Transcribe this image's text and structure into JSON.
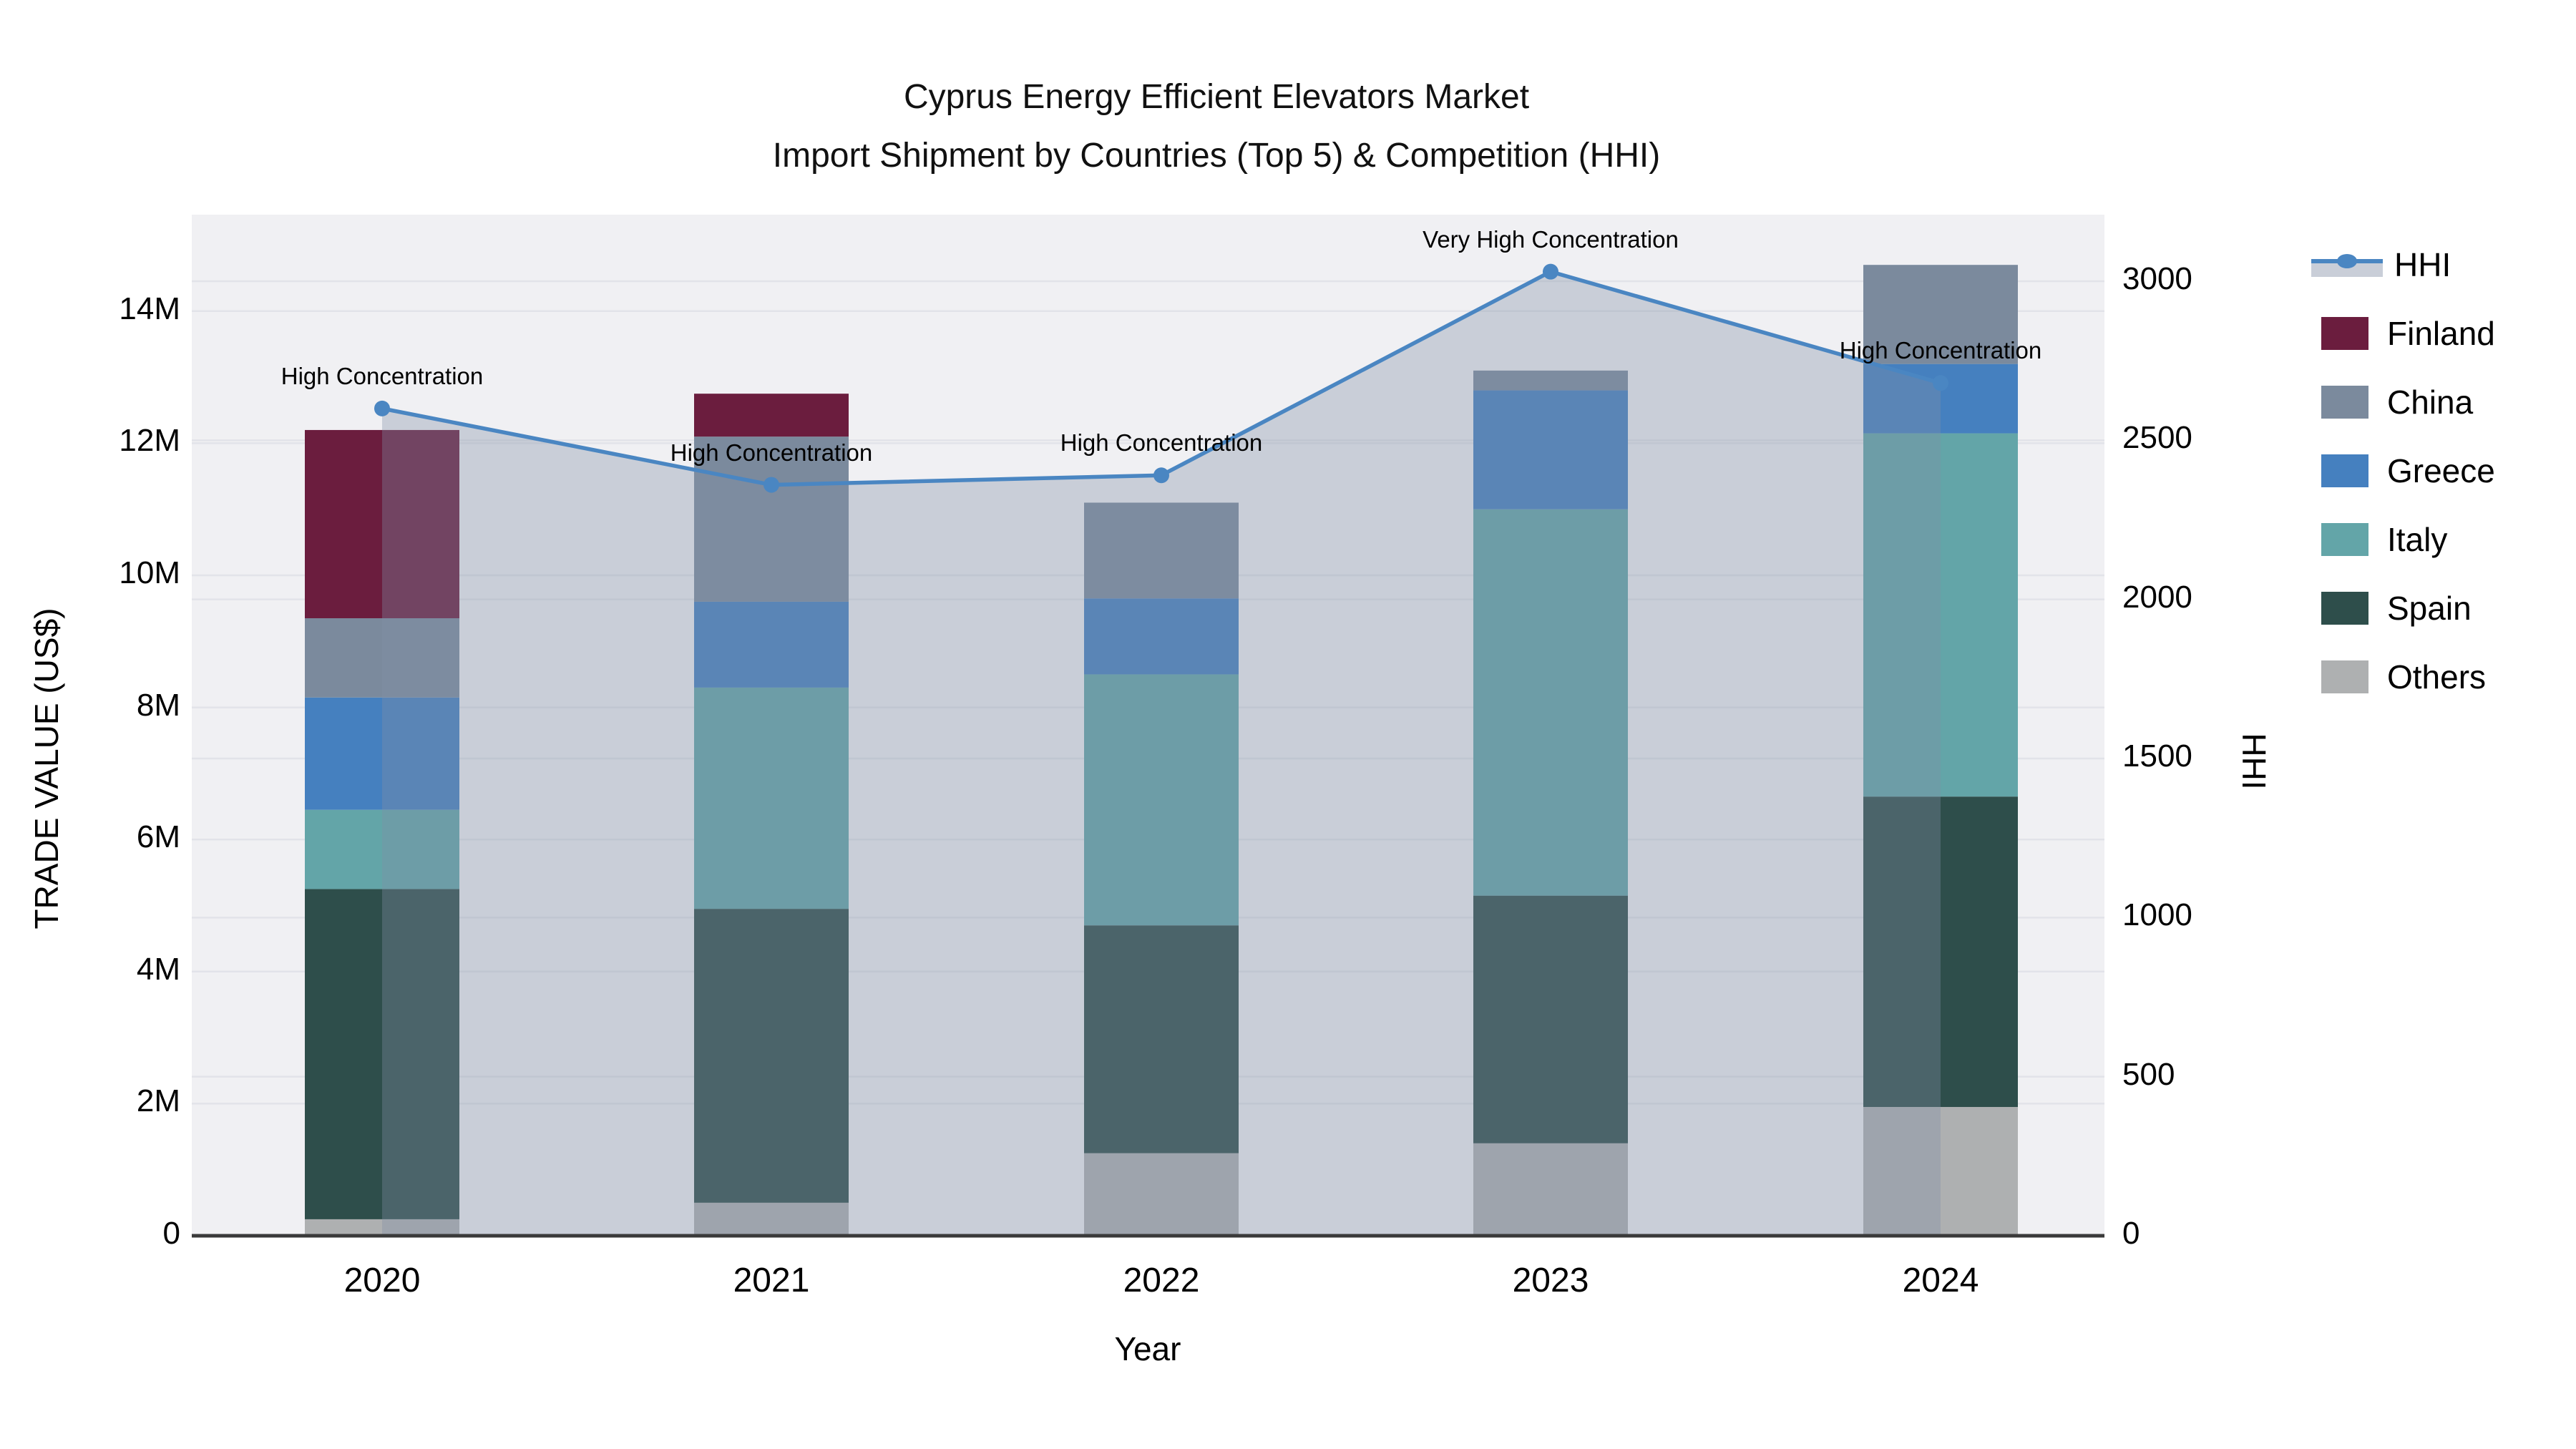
{
  "title": {
    "line1": "Cyprus Energy Efficient Elevators Market",
    "line2": "Import Shipment by Countries (Top 5) & Competition (HHI)"
  },
  "axes": {
    "x": {
      "title": "Year"
    },
    "y_left": {
      "title": "TRADE VALUE (US$)",
      "ticks": [
        {
          "label": "0",
          "value": 0
        },
        {
          "label": "2M",
          "value": 2
        },
        {
          "label": "4M",
          "value": 4
        },
        {
          "label": "6M",
          "value": 6
        },
        {
          "label": "8M",
          "value": 8
        },
        {
          "label": "10M",
          "value": 10
        },
        {
          "label": "12M",
          "value": 12
        },
        {
          "label": "14M",
          "value": 14
        }
      ]
    },
    "y_right": {
      "title": "HHI",
      "ticks": [
        {
          "label": "0",
          "value": 0
        },
        {
          "label": "500",
          "value": 500
        },
        {
          "label": "1000",
          "value": 1000
        },
        {
          "label": "1500",
          "value": 1500
        },
        {
          "label": "2000",
          "value": 2000
        },
        {
          "label": "2500",
          "value": 2500
        },
        {
          "label": "3000",
          "value": 3000
        }
      ]
    }
  },
  "legend": [
    {
      "label": "HHI",
      "type": "line",
      "color": "#4a86c2"
    },
    {
      "label": "Finland",
      "type": "patch",
      "color": "#6b1d3e"
    },
    {
      "label": "China",
      "type": "patch",
      "color": "#7b8a9d"
    },
    {
      "label": "Greece",
      "type": "patch",
      "color": "#4580bf"
    },
    {
      "label": "Italy",
      "type": "patch",
      "color": "#63a5a8"
    },
    {
      "label": "Spain",
      "type": "patch",
      "color": "#2e4e4b"
    },
    {
      "label": "Others",
      "type": "patch",
      "color": "#aeb0b1"
    }
  ],
  "chart_data": {
    "type": "combo: stacked-bar + line (secondary axis) with area fill",
    "categories": [
      "2020",
      "2021",
      "2022",
      "2023",
      "2024"
    ],
    "bar_unit": "trade value, millions US$",
    "stack_order_bottom_to_top": [
      "Others",
      "Spain",
      "Italy",
      "Greece",
      "China",
      "Finland"
    ],
    "series": [
      {
        "name": "Others",
        "color": "#aeb0b1",
        "values": [
          0.25,
          0.5,
          1.25,
          1.4,
          1.95
        ]
      },
      {
        "name": "Spain",
        "color": "#2e4e4b",
        "values": [
          5.0,
          4.45,
          3.45,
          3.75,
          4.7
        ]
      },
      {
        "name": "Italy",
        "color": "#63a5a8",
        "values": [
          1.2,
          3.35,
          3.8,
          5.85,
          5.5
        ]
      },
      {
        "name": "Greece",
        "color": "#4580bf",
        "values": [
          1.7,
          1.3,
          1.15,
          1.8,
          1.05
        ]
      },
      {
        "name": "China",
        "color": "#7b8a9d",
        "values": [
          1.2,
          2.5,
          1.45,
          0.3,
          1.5
        ]
      },
      {
        "name": "Finland",
        "color": "#6b1d3e",
        "values": [
          2.85,
          0.65,
          0,
          0,
          0
        ]
      }
    ],
    "bar_totals": [
      12.2,
      12.75,
      11.1,
      13.1,
      14.7
    ],
    "line": {
      "name": "HHI",
      "color": "#4a86c2",
      "area_fill": "rgba(128,142,166,0.35)",
      "values": [
        2600,
        2360,
        2390,
        3030,
        2680
      ],
      "annotations": [
        "High Concentration",
        "High Concentration",
        "High Concentration",
        "Very High Concentration",
        "High Concentration"
      ]
    },
    "title": "Cyprus Energy Efficient Elevators Market — Import Shipment by Countries (Top 5) & Competition (HHI)",
    "xlabel": "Year",
    "ylabel_left": "TRADE VALUE (US$)",
    "ylabel_right": "HHI",
    "ylim_left": [
      0,
      15.5
    ],
    "ylim_right": [
      0,
      3210
    ],
    "grid": true,
    "legend_position": "right",
    "plot_background": "#f0f0f3",
    "gridline_color": "#e2e3e9",
    "axis_line_color": "#3a3a3a"
  }
}
